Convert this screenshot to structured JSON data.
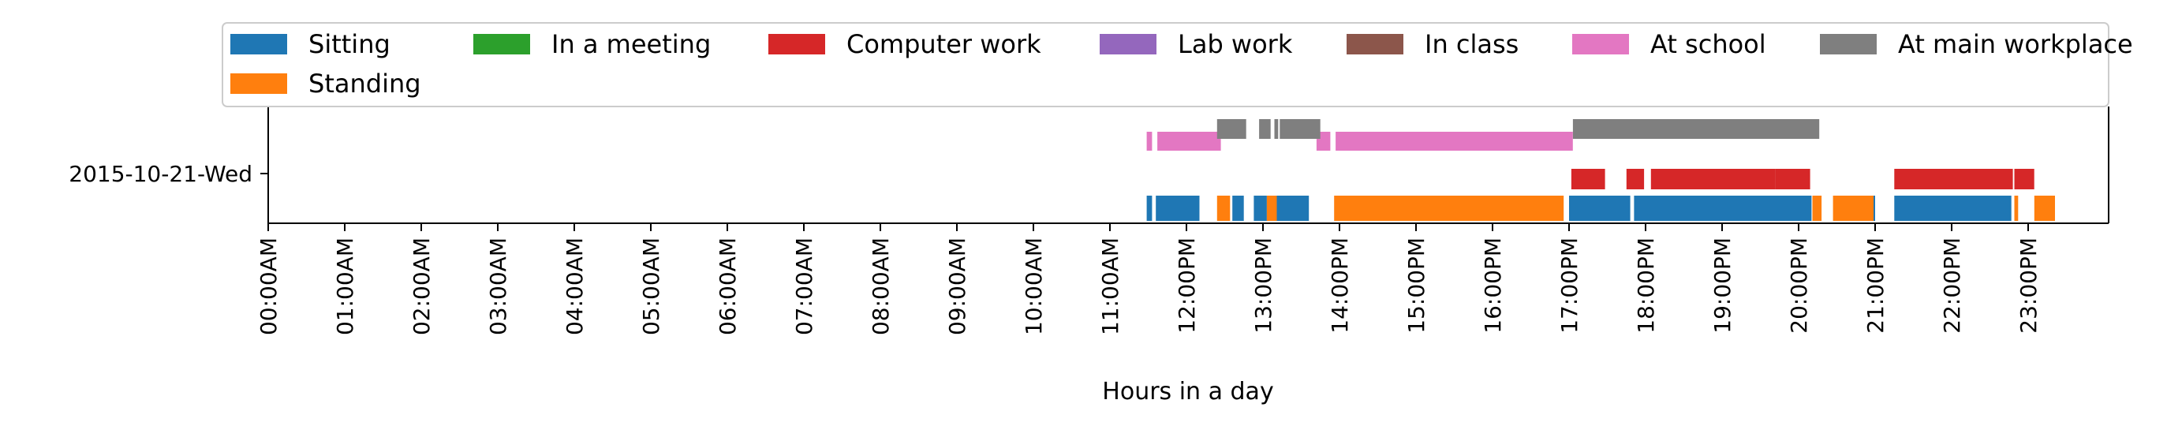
{
  "chart_data": {
    "type": "timeline",
    "title": "",
    "xlabel": "Hours in a day",
    "ylabel": "",
    "xlim": [
      0,
      24
    ],
    "row_label": "2015-10-21-Wed",
    "legend_position": "top",
    "x_ticks": [
      {
        "value": 0,
        "label": "00:00AM"
      },
      {
        "value": 1,
        "label": "01:00AM"
      },
      {
        "value": 2,
        "label": "02:00AM"
      },
      {
        "value": 3,
        "label": "03:00AM"
      },
      {
        "value": 4,
        "label": "04:00AM"
      },
      {
        "value": 5,
        "label": "05:00AM"
      },
      {
        "value": 6,
        "label": "06:00AM"
      },
      {
        "value": 7,
        "label": "07:00AM"
      },
      {
        "value": 8,
        "label": "08:00AM"
      },
      {
        "value": 9,
        "label": "09:00AM"
      },
      {
        "value": 10,
        "label": "10:00AM"
      },
      {
        "value": 11,
        "label": "11:00AM"
      },
      {
        "value": 12,
        "label": "12:00PM"
      },
      {
        "value": 13,
        "label": "13:00PM"
      },
      {
        "value": 14,
        "label": "14:00PM"
      },
      {
        "value": 15,
        "label": "15:00PM"
      },
      {
        "value": 16,
        "label": "16:00PM"
      },
      {
        "value": 17,
        "label": "17:00PM"
      },
      {
        "value": 18,
        "label": "18:00PM"
      },
      {
        "value": 19,
        "label": "19:00PM"
      },
      {
        "value": 20,
        "label": "20:00PM"
      },
      {
        "value": 21,
        "label": "21:00PM"
      },
      {
        "value": 22,
        "label": "22:00PM"
      },
      {
        "value": 23,
        "label": "23:00PM"
      }
    ],
    "series": [
      {
        "name": "Sitting",
        "color": "#1f77b4",
        "lane": 0,
        "intervals": [
          [
            11.48,
            11.55
          ],
          [
            11.6,
            12.17
          ],
          [
            12.6,
            12.75
          ],
          [
            12.88,
            13.05
          ],
          [
            13.12,
            13.6
          ],
          [
            17.0,
            17.8
          ],
          [
            17.85,
            20.17
          ],
          [
            20.85,
            21.0
          ],
          [
            21.25,
            22.78
          ]
        ]
      },
      {
        "name": "In a meeting",
        "color": "#2ca02c",
        "lane": 2,
        "intervals": []
      },
      {
        "name": "Computer work",
        "color": "#d62728",
        "lane": 1,
        "intervals": [
          [
            17.03,
            17.47
          ],
          [
            17.75,
            17.98
          ],
          [
            18.07,
            19.7
          ],
          [
            19.7,
            20.15
          ],
          [
            21.25,
            22.8
          ],
          [
            22.82,
            23.08
          ]
        ]
      },
      {
        "name": "Lab work",
        "color": "#9467bd",
        "lane": 2,
        "intervals": []
      },
      {
        "name": "In class",
        "color": "#8c564b",
        "lane": 3,
        "intervals": []
      },
      {
        "name": "At school",
        "color": "#e377c2",
        "lane": 2,
        "intervals": [
          [
            11.48,
            11.55
          ],
          [
            11.62,
            12.45
          ],
          [
            13.7,
            13.88
          ],
          [
            13.95,
            17.05
          ]
        ]
      },
      {
        "name": "At main workplace",
        "color": "#7f7f7f",
        "lane": 3,
        "intervals": [
          [
            12.4,
            12.78
          ],
          [
            12.95,
            13.1
          ],
          [
            13.15,
            13.2
          ],
          [
            13.22,
            13.75
          ],
          [
            17.05,
            20.27
          ]
        ]
      },
      {
        "name": "Standing",
        "color": "#ff7f0e",
        "lane": 0,
        "intervals": [
          [
            12.4,
            12.57
          ],
          [
            13.05,
            13.18
          ],
          [
            13.93,
            16.93
          ],
          [
            20.18,
            20.3
          ],
          [
            20.45,
            20.98
          ],
          [
            22.82,
            22.87
          ],
          [
            23.08,
            23.35
          ]
        ]
      }
    ]
  }
}
